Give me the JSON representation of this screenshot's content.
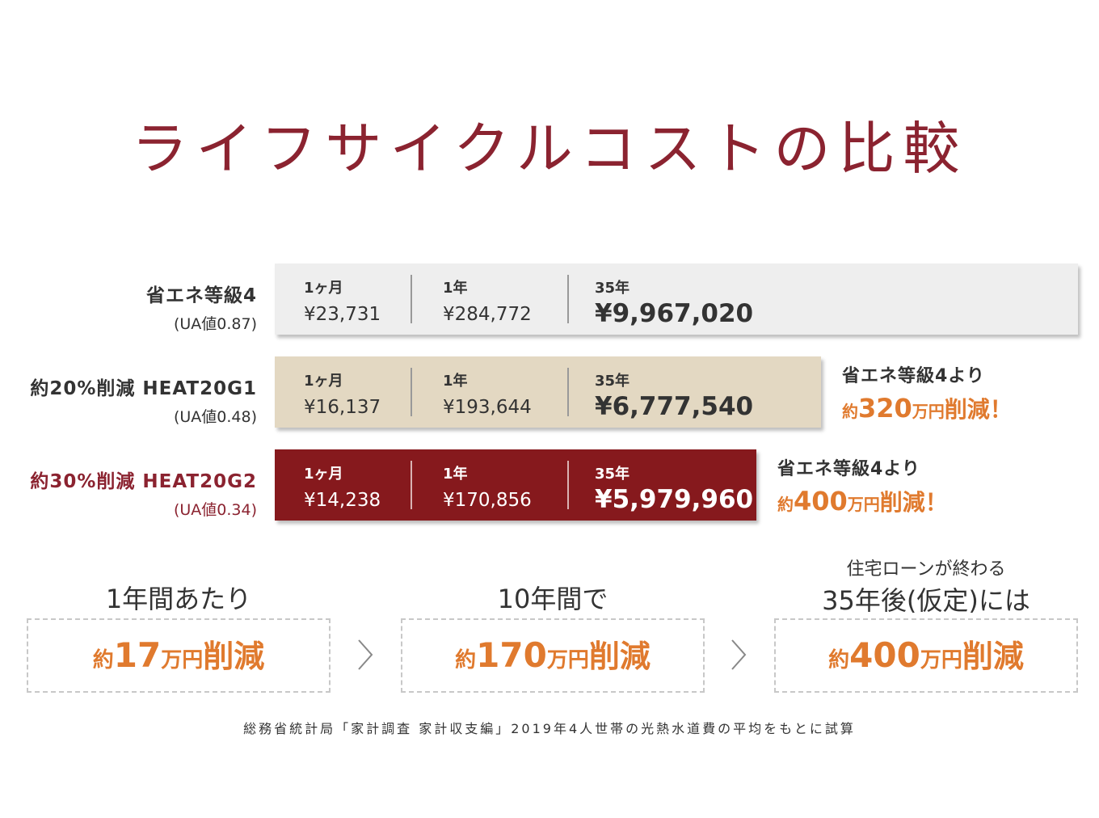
{
  "title": "ライフサイクルコストの比較",
  "colors": {
    "title": "#8b2330",
    "accent": "#e07a2e",
    "grey_bar": "#eeeeee",
    "beige_bar": "#e3d8c2",
    "dark_bar": "#86191d"
  },
  "chart_data": {
    "type": "bar",
    "title": "ライフサイクルコストの比較",
    "categories": [
      "省エネ等級4",
      "約20%削減 HEAT20G1",
      "約30%削減 HEAT20G2"
    ],
    "series": [
      {
        "name": "1ヶ月",
        "values": [
          23731,
          16137,
          14238
        ]
      },
      {
        "name": "1年",
        "values": [
          284772,
          193644,
          170856
        ]
      },
      {
        "name": "35年",
        "values": [
          9967020,
          6777540,
          5979960
        ]
      }
    ],
    "rows": [
      {
        "label": "省エネ等級4",
        "sub": "(UA値0.87)",
        "label_color": "#333333",
        "bar_color": "#eeeeee",
        "text_color": "#333333",
        "sep_color": "#999999",
        "v35": 9967020,
        "cells": [
          {
            "period": "1ヶ月",
            "amount": "¥23,731"
          },
          {
            "period": "1年",
            "amount": "¥284,772"
          },
          {
            "period": "35年",
            "amount": "¥9,967,020"
          }
        ],
        "saving": null
      },
      {
        "label": "約20%削減 HEAT20G1",
        "sub": "(UA値0.48)",
        "label_color": "#333333",
        "bar_color": "#e3d8c2",
        "text_color": "#333333",
        "sep_color": "#999999",
        "v35": 6777540,
        "cells": [
          {
            "period": "1ヶ月",
            "amount": "¥16,137"
          },
          {
            "period": "1年",
            "amount": "¥193,644"
          },
          {
            "period": "35年",
            "amount": "¥6,777,540"
          }
        ],
        "saving": {
          "from": "省エネ等級4より",
          "pre": "約",
          "num": "320",
          "unit": "万円",
          "tail": "削減！"
        }
      },
      {
        "label": "約30%削減 HEAT20G2",
        "sub": "(UA値0.34)",
        "label_color": "#8b2330",
        "bar_color": "#86191d",
        "text_color": "#ffffff",
        "sep_color": "#d9b3b3",
        "v35": 5979960,
        "cells": [
          {
            "period": "1ヶ月",
            "amount": "¥14,238"
          },
          {
            "period": "1年",
            "amount": "¥170,856"
          },
          {
            "period": "35年",
            "amount": "¥5,979,960"
          }
        ],
        "saving": {
          "from": "省エネ等級4より",
          "pre": "約",
          "num": "400",
          "unit": "万円",
          "tail": "削減！"
        }
      }
    ]
  },
  "summary": [
    {
      "pre": "",
      "heading": "1年間あたり",
      "s1": "約",
      "num": "17",
      "unit": "万円",
      "tail": "削減"
    },
    {
      "pre": "",
      "heading": "10年間で",
      "s1": "約",
      "num": "170",
      "unit": "万円",
      "tail": "削減"
    },
    {
      "pre": "住宅ローンが終わる",
      "heading": "35年後(仮定)には",
      "s1": "約",
      "num": "400",
      "unit": "万円",
      "tail": "削減"
    }
  ],
  "footnote": "総務省統計局「家計調査 家計収支編」2019年4人世帯の光熱水道費の平均をもとに試算"
}
